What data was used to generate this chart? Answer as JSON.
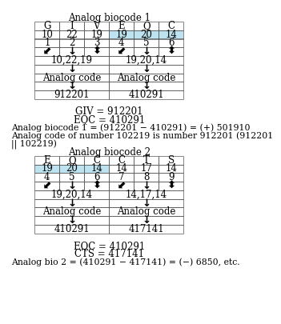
{
  "title1": "Analog biocode 1",
  "title2": "Analog biocode 2",
  "table1_headers": [
    "G",
    "I",
    "V",
    "E",
    "Q",
    "C"
  ],
  "table1_row1": [
    "10",
    "22",
    "19",
    "19",
    "20",
    "14"
  ],
  "table1_row2": [
    "1",
    "2",
    "3",
    "4",
    "5",
    "6"
  ],
  "table1_highlight_cols": [
    3,
    4,
    5
  ],
  "table1_group1_label": "10,22,19",
  "table1_group2_label": "19,20,14",
  "table1_code1": "912201",
  "table1_code2": "410291",
  "table2_headers": [
    "E",
    "Q",
    "C",
    "C",
    "T",
    "S"
  ],
  "table2_row1": [
    "19",
    "20",
    "14",
    "14",
    "17",
    "14"
  ],
  "table2_row2": [
    "4",
    "5",
    "6",
    "7",
    "8",
    "9"
  ],
  "table2_highlight_cols": [
    0,
    1,
    2
  ],
  "table2_group1_label": "19,20,14",
  "table2_group2_label": "14,17,14",
  "table2_code1": "410291",
  "table2_code2": "417141",
  "text1": "GIV = 912201",
  "text2": "EQC = 410291",
  "text3": "Analog biocode 1 = (912201 − 410291) = (+) 501910",
  "text4": "Analog code of number 102219 is number 912201 (912201",
  "text5": "|| 102219)",
  "text6": "EQC = 410291",
  "text7": "CTS = 417141",
  "text8": "Analog bio 2 = (410291 − 417141) = (−) 6850, etc.",
  "highlight_color": "#bde3f0",
  "bg_color": "white",
  "font_size": 8.5,
  "small_font_size": 7.8
}
